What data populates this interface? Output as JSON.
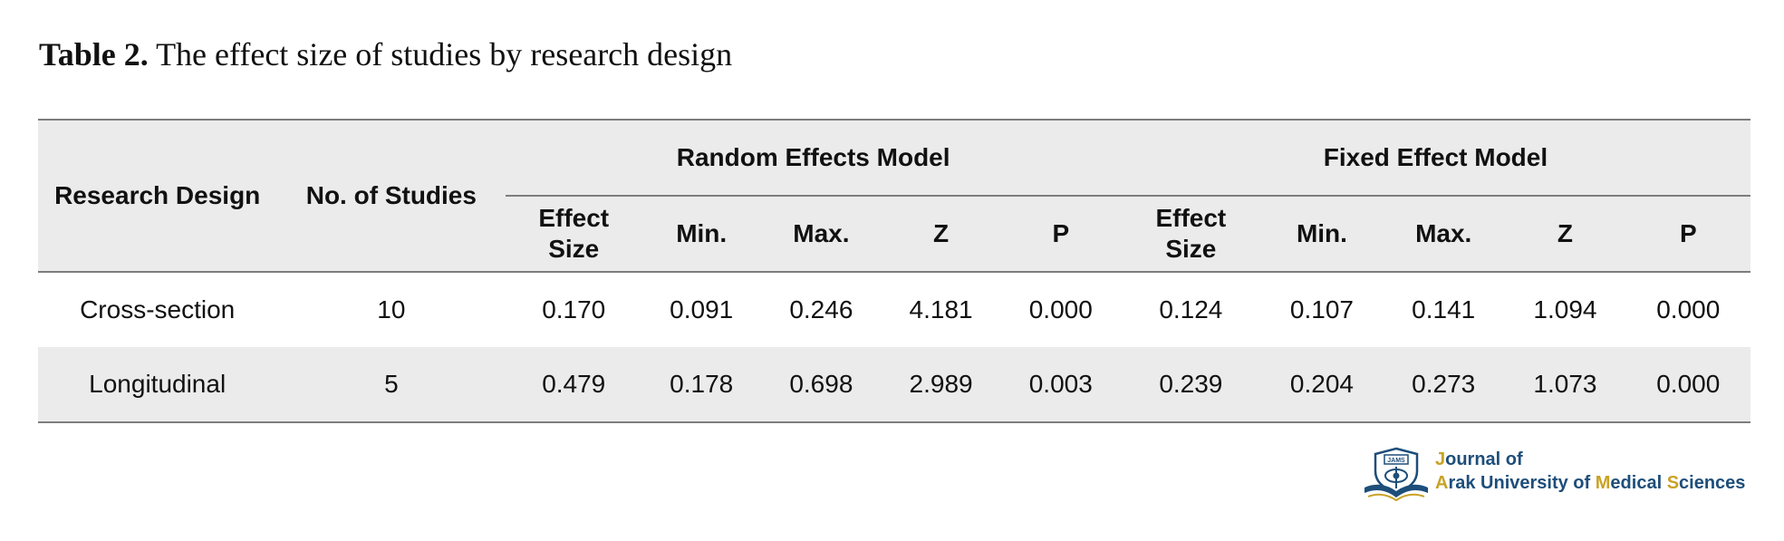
{
  "caption": {
    "label": "Table 2.",
    "text": " The effect size of studies by research design"
  },
  "table": {
    "headers": {
      "research_design": "Research Design",
      "no_of_studies": "No. of Studies",
      "random_group": "Random Effects Model",
      "fixed_group": "Fixed Effect Model",
      "random_cols": [
        "Effect Size",
        "Min.",
        "Max.",
        "Z",
        "P"
      ],
      "fixed_cols": [
        "Effect Size",
        "Min.",
        "Max.",
        "Z",
        "P"
      ]
    },
    "rows": [
      {
        "design": "Cross-section",
        "studies": "10",
        "random": [
          "0.170",
          "0.091",
          "0.246",
          "4.181",
          "0.000"
        ],
        "fixed": [
          "0.124",
          "0.107",
          "0.141",
          "1.094",
          "0.000"
        ]
      },
      {
        "design": "Longitudinal",
        "studies": "5",
        "random": [
          "0.479",
          "0.178",
          "0.698",
          "2.989",
          "0.003"
        ],
        "fixed": [
          "0.239",
          "0.204",
          "0.273",
          "1.073",
          "0.000"
        ]
      }
    ]
  },
  "logo": {
    "line1_initial": "J",
    "line1_rest": "ournal of",
    "line2_a": "A",
    "line2_b": "rak University of ",
    "line2_m": "M",
    "line2_c": "edical ",
    "line2_s": "S",
    "line2_d": "ciences",
    "emblem_text": "JAMS",
    "colors": {
      "primary": "#1d4e7a",
      "accent": "#c9a227"
    }
  }
}
